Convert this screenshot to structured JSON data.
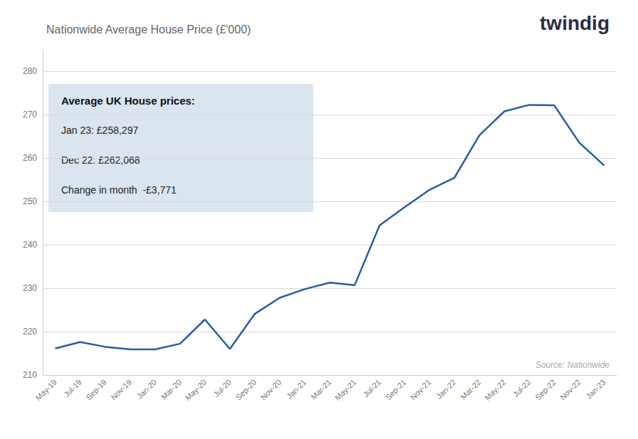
{
  "chart_data": {
    "type": "line",
    "title": "Nationwide Average House Price (£'000)",
    "categories": [
      "May-19",
      "Jul-19",
      "Sep-19",
      "Nov-19",
      "Jan-20",
      "Mar-20",
      "May-20",
      "Jul-20",
      "Sep-20",
      "Nov-20",
      "Jan-21",
      "Mar-21",
      "May-21",
      "Jul-21",
      "Sep-21",
      "Nov-21",
      "Jan-22",
      "Mar-22",
      "May-22",
      "Jul-22",
      "Sep-22",
      "Nov-22",
      "Jan-23"
    ],
    "values": [
      216.1,
      217.6,
      216.5,
      215.9,
      215.9,
      217.2,
      222.8,
      216.0,
      224.1,
      227.8,
      229.8,
      231.3,
      230.7,
      244.5,
      248.7,
      252.7,
      255.5,
      265.3,
      270.8,
      272.3,
      272.2,
      263.6,
      258.3
    ],
    "color": "#2B5BA8",
    "ylim": [
      210,
      285
    ],
    "yticks": [
      210,
      220,
      230,
      240,
      250,
      260,
      270,
      280
    ],
    "grid": true,
    "annotations": {
      "source": "Source: Nationwide",
      "logo": "twindig",
      "box_title": "Average UK House prices:",
      "box_lines": [
        "Jan 23: £258,297",
        "Dec 22: £262,068",
        "Change in month  -£3,771"
      ]
    }
  }
}
